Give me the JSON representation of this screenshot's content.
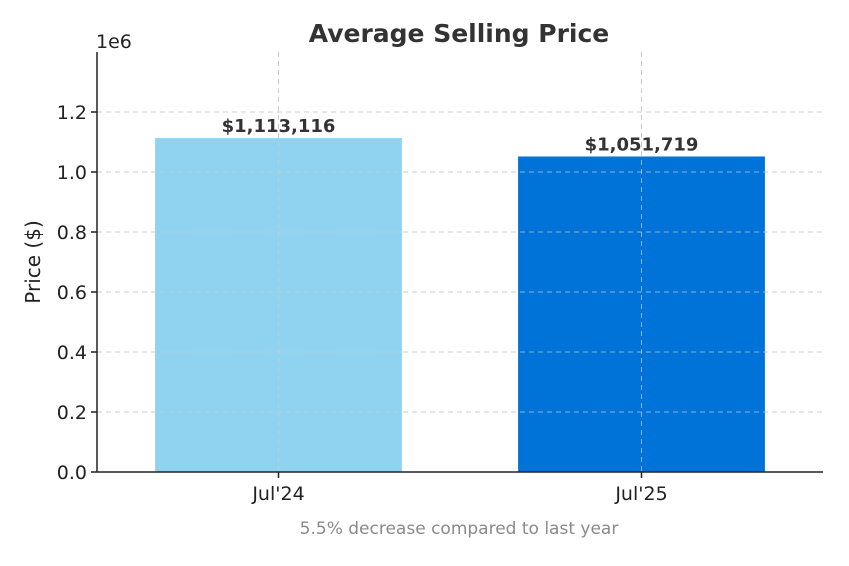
{
  "chart_data": {
    "type": "bar",
    "title": "Average Selling Price",
    "ylabel": "Price ($)",
    "xlabel": "",
    "offset_label": "1e6",
    "categories": [
      "Jul'24",
      "Jul'25"
    ],
    "values": [
      1113116,
      1051719
    ],
    "value_labels": [
      "$1,113,116",
      "$1,051,719"
    ],
    "bar_colors": [
      "#8fd3f1",
      "#0073d9"
    ],
    "ylim": [
      0,
      1400000
    ],
    "yticks": [
      0,
      200000,
      400000,
      600000,
      800000,
      1000000,
      1200000
    ],
    "ytick_labels": [
      "0.0",
      "0.2",
      "0.4",
      "0.6",
      "0.8",
      "1.0",
      "1.2"
    ],
    "grid": true,
    "footnote": "5.5% decrease compared to last year"
  }
}
